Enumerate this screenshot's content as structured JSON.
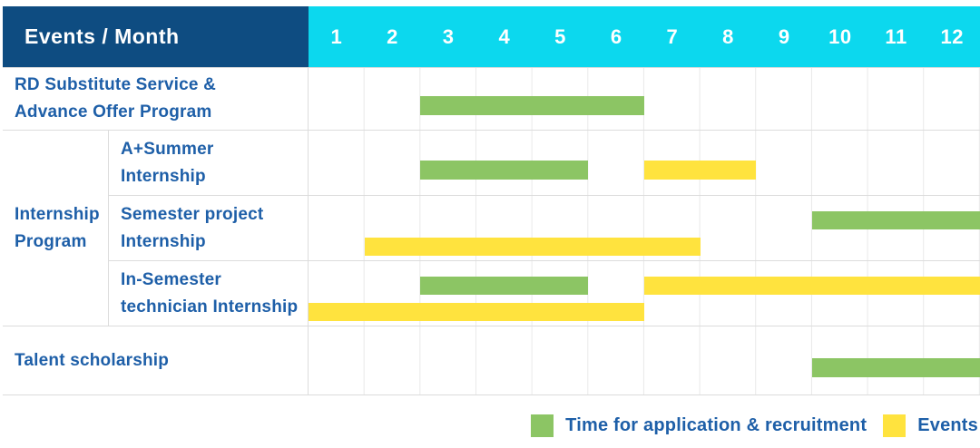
{
  "header": {
    "title": "Events / Month",
    "months": [
      "1",
      "2",
      "3",
      "4",
      "5",
      "6",
      "7",
      "8",
      "9",
      "10",
      "11",
      "12"
    ]
  },
  "colors": {
    "header_navy": "#0e4c81",
    "header_cyan": "#0cd8ee",
    "bar_green": "#8cc564",
    "bar_yellow": "#ffe33e",
    "label_blue": "#1e5fa8"
  },
  "chart_data": {
    "type": "table",
    "title": "Events / Month",
    "x": "months 1-12",
    "month_count": 12,
    "group_label": "Internship\nProgram",
    "rows": [
      {
        "id": "rd-substitute",
        "label": "RD Substitute Service &\nAdvance Offer Program",
        "group": null,
        "bars": [
          {
            "type": "application_recruitment",
            "color": "green",
            "from": 3,
            "to": 6,
            "lane": "center"
          }
        ]
      },
      {
        "id": "a-plus-summer",
        "label": "A+Summer\nInternship",
        "group": "Internship Program",
        "bars": [
          {
            "type": "application_recruitment",
            "color": "green",
            "from": 3,
            "to": 5,
            "lane": "center"
          },
          {
            "type": "event",
            "color": "yellow",
            "from": 7,
            "to": 8,
            "lane": "center"
          }
        ]
      },
      {
        "id": "semester-project",
        "label": "Semester project\nInternship",
        "group": "Internship Program",
        "bars": [
          {
            "type": "application_recruitment",
            "color": "green",
            "from": 10,
            "to": 12,
            "lane": "top"
          },
          {
            "type": "event",
            "color": "yellow",
            "from": 2,
            "to": 7,
            "lane": "bottom"
          }
        ]
      },
      {
        "id": "in-semester-technician",
        "label": "In-Semester\ntechnician Internship",
        "group": "Internship Program",
        "bars": [
          {
            "type": "application_recruitment",
            "color": "green",
            "from": 3,
            "to": 5,
            "lane": "top"
          },
          {
            "type": "event",
            "color": "yellow",
            "from": 7,
            "to": 12,
            "lane": "top"
          },
          {
            "type": "event",
            "color": "yellow",
            "from": 1,
            "to": 6,
            "lane": "bottom"
          }
        ]
      },
      {
        "id": "talent-scholarship",
        "label": "Talent scholarship",
        "group": null,
        "bars": [
          {
            "type": "application_recruitment",
            "color": "green",
            "from": 10,
            "to": 12,
            "lane": "center"
          }
        ]
      }
    ]
  },
  "legend": {
    "items": [
      {
        "color": "green",
        "label": "Time for application & recruitment"
      },
      {
        "color": "yellow",
        "label": "Events"
      }
    ]
  }
}
